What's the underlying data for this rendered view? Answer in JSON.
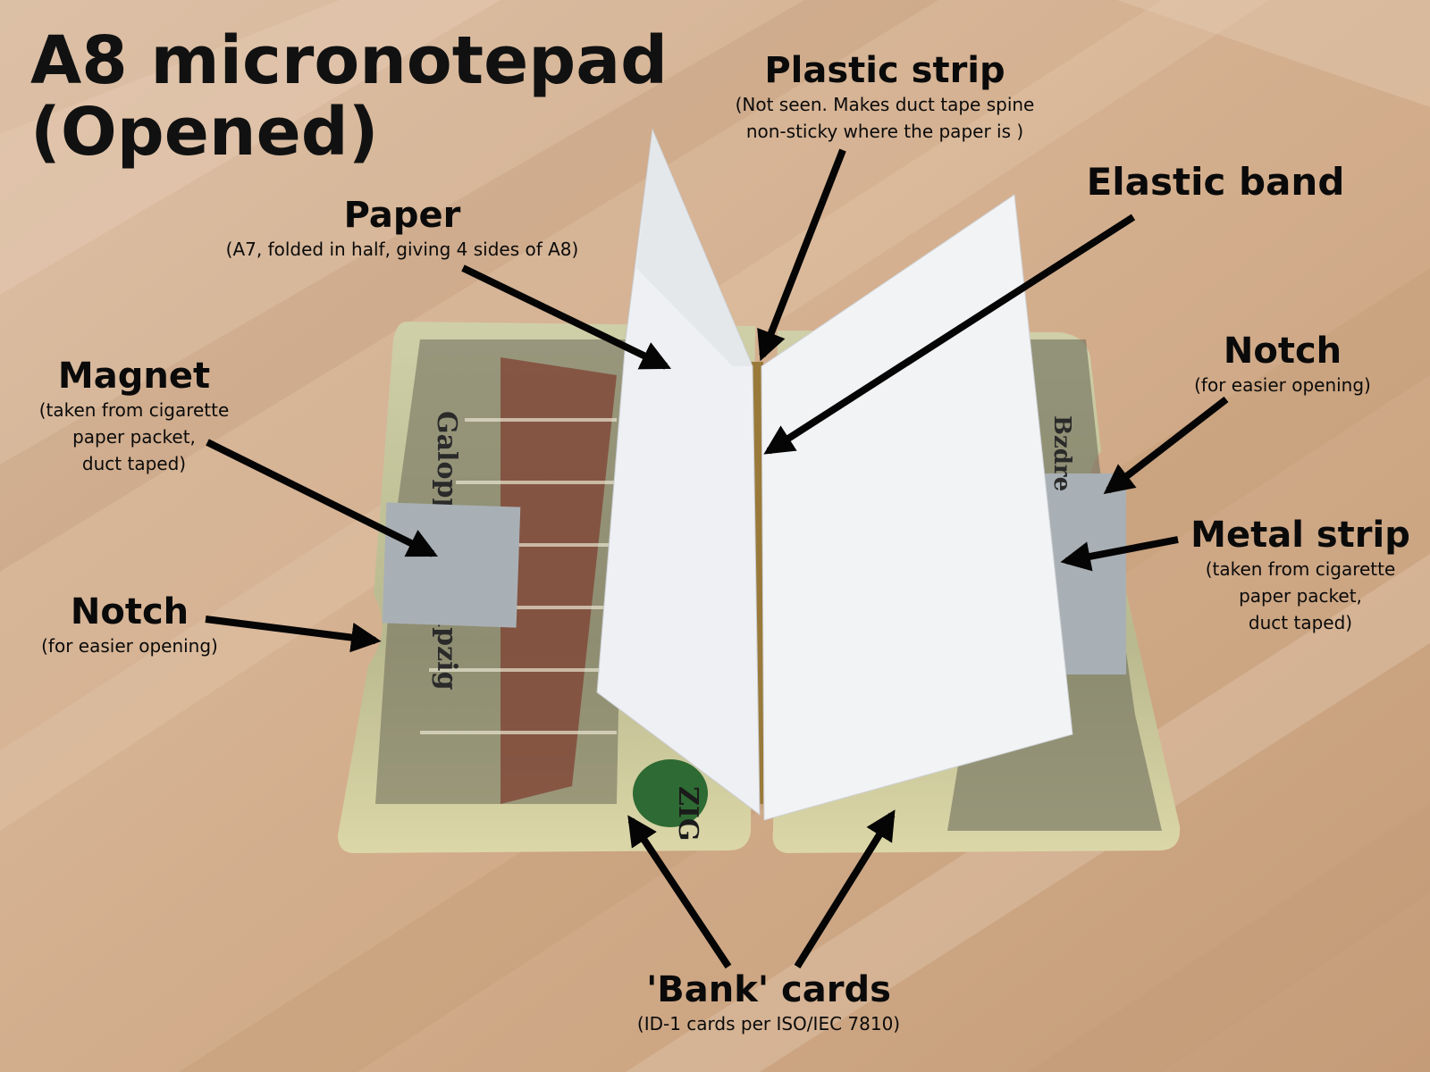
{
  "title": "A8 micronotepad\n(Opened)",
  "annotations": {
    "plastic_strip": {
      "head": "Plastic strip",
      "sub": "(Not seen. Makes duct tape spine\nnon-sticky where the paper is )"
    },
    "elastic_band": {
      "head": "Elastic band"
    },
    "paper": {
      "head": "Paper",
      "sub": "(A7, folded in half, giving 4 sides of A8)"
    },
    "magnet": {
      "head": "Magnet",
      "sub": "(taken from cigarette\npaper packet,\nduct taped)"
    },
    "notch_left": {
      "head": "Notch",
      "sub": "(for easier opening)"
    },
    "notch_right": {
      "head": "Notch",
      "sub": "(for easier opening)"
    },
    "metal_strip": {
      "head": "Metal strip",
      "sub": "(taken from cigarette\npaper packet,\nduct taped)"
    },
    "bank_cards": {
      "head": "'Bank' cards",
      "sub": "(ID-1 cards per ISO/IEC 7810)"
    }
  },
  "card_print": {
    "left_vertical": "Galopplatz Leipzig",
    "left_bottom": "ZIG",
    "right_vertical": "Bzdre"
  },
  "colors": {
    "wood_light": "#d9b89a",
    "wood_dark": "#c29a7a",
    "paper": "#f2f3f5",
    "duct_tape": "#a9b0b5",
    "arrow": "#050505",
    "spine": "#9a7a3a"
  },
  "icons": [
    "arrow-icon"
  ]
}
